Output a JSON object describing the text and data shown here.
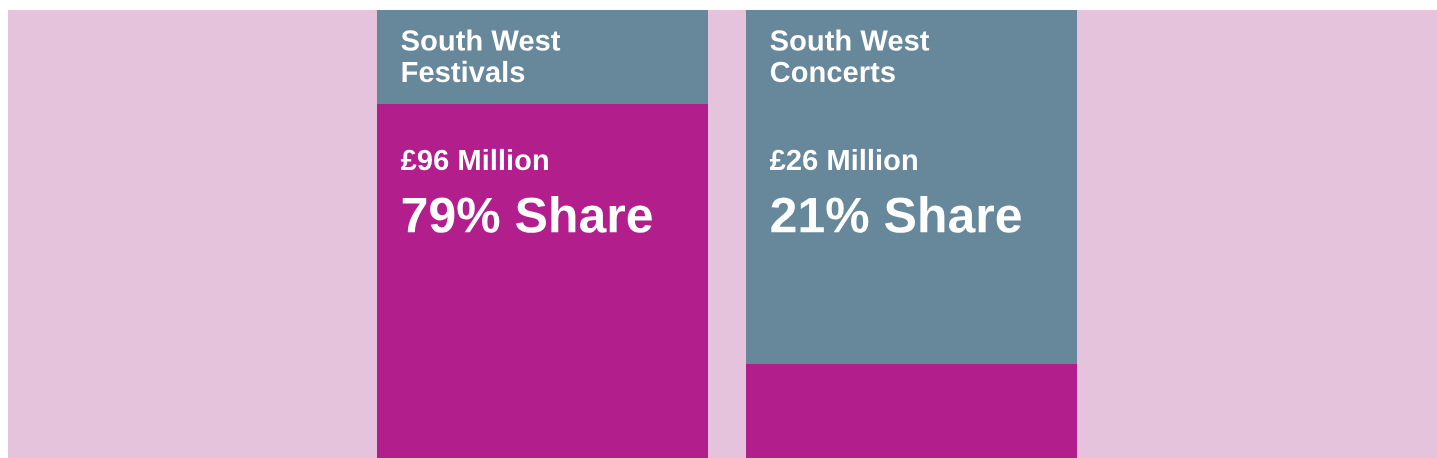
{
  "chart_data": {
    "type": "bar",
    "stacked": true,
    "categories": [
      "South West Festivals",
      "South West Concerts"
    ],
    "series": [
      {
        "color": "#b21f8c",
        "values": [
          79,
          21
        ],
        "value_labels": [
          "79% Share",
          "21% Share"
        ]
      },
      {
        "color": "#66889a",
        "values": [
          21,
          79
        ]
      }
    ],
    "ylim": [
      0,
      100
    ],
    "annotations": [
      "£96 Million",
      "£26 Million"
    ]
  }
}
